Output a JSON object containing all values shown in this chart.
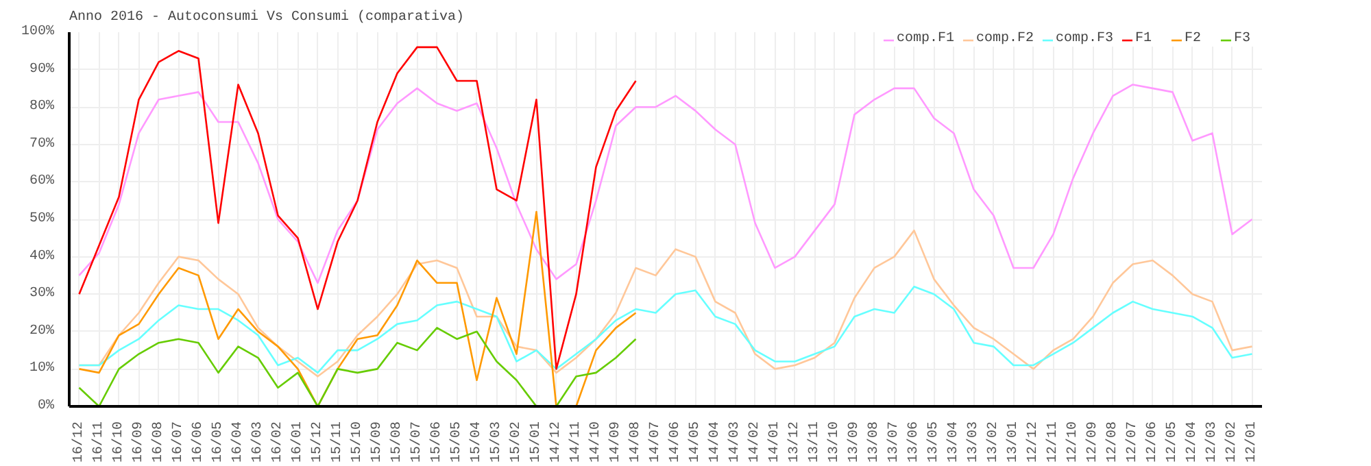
{
  "chart_data": {
    "type": "line",
    "title": "Anno 2016 - Autoconsumi Vs Consumi (comparativa)",
    "categories": [
      "16/12",
      "16/11",
      "16/10",
      "16/09",
      "16/08",
      "16/07",
      "16/06",
      "16/05",
      "16/04",
      "16/03",
      "16/02",
      "16/01",
      "15/12",
      "15/11",
      "15/10",
      "15/09",
      "15/08",
      "15/07",
      "15/06",
      "15/05",
      "15/04",
      "15/03",
      "15/02",
      "15/01",
      "14/12",
      "14/11",
      "14/10",
      "14/09",
      "14/08",
      "14/07",
      "14/06",
      "14/05",
      "14/04",
      "14/03",
      "14/02",
      "14/01",
      "13/12",
      "13/11",
      "13/10",
      "13/09",
      "13/08",
      "13/07",
      "13/06",
      "13/05",
      "13/04",
      "13/03",
      "13/02",
      "13/01",
      "12/12",
      "12/11",
      "12/10",
      "12/09",
      "12/08",
      "12/07",
      "12/06",
      "12/05",
      "12/04",
      "12/03",
      "12/02",
      "12/01"
    ],
    "series": [
      {
        "name": "comp.F1",
        "color": "#ff99ff",
        "values": [
          35,
          41,
          54,
          73,
          82,
          83,
          84,
          76,
          76,
          65,
          50,
          44,
          33,
          47,
          55,
          74,
          81,
          85,
          81,
          79,
          81,
          69,
          54,
          42,
          34,
          38,
          55,
          75,
          80,
          80,
          83,
          79,
          74,
          70,
          49,
          37,
          40,
          47,
          54,
          78,
          82,
          85,
          85,
          77,
          73,
          58,
          51,
          37,
          37,
          46,
          61,
          73,
          83,
          86,
          85,
          84,
          71,
          73,
          46,
          50
        ]
      },
      {
        "name": "comp.F2",
        "color": "#ffc799",
        "values": [
          11,
          11,
          19,
          25,
          33,
          40,
          39,
          34,
          30,
          21,
          16,
          12,
          8,
          12,
          19,
          24,
          30,
          38,
          39,
          37,
          24,
          24,
          16,
          15,
          9,
          13,
          18,
          25,
          37,
          35,
          42,
          40,
          28,
          25,
          14,
          10,
          11,
          13,
          17,
          29,
          37,
          40,
          47,
          34,
          27,
          21,
          18,
          14,
          10,
          15,
          18,
          24,
          33,
          38,
          39,
          35,
          30,
          28,
          15,
          16
        ]
      },
      {
        "name": "comp.F3",
        "color": "#66ffff",
        "values": [
          11,
          11,
          15,
          18,
          23,
          27,
          26,
          26,
          23,
          19,
          11,
          13,
          9,
          15,
          15,
          18,
          22,
          23,
          27,
          28,
          26,
          24,
          12,
          15,
          10,
          14,
          18,
          23,
          26,
          25,
          30,
          31,
          24,
          22,
          15,
          12,
          12,
          14,
          16,
          24,
          26,
          25,
          32,
          30,
          26,
          17,
          16,
          11,
          11,
          14,
          17,
          21,
          25,
          28,
          26,
          25,
          24,
          21,
          13,
          14
        ]
      },
      {
        "name": "F1",
        "color": "#ff0000",
        "values": [
          30,
          43,
          56,
          82,
          92,
          95,
          93,
          49,
          86,
          73,
          51,
          45,
          26,
          44,
          55,
          76,
          89,
          96,
          96,
          87,
          87,
          58,
          55,
          82,
          10,
          30,
          64,
          79,
          87,
          null,
          null,
          null,
          null,
          null,
          null,
          null,
          null,
          null,
          null,
          null,
          null,
          null,
          null,
          null,
          null,
          null,
          null,
          null,
          null,
          null,
          null,
          null,
          null,
          null,
          null,
          null,
          null,
          null,
          null,
          null
        ]
      },
      {
        "name": "F2",
        "color": "#ff9900",
        "values": [
          10,
          9,
          19,
          22,
          30,
          37,
          35,
          18,
          26,
          20,
          16,
          10,
          0,
          10,
          18,
          19,
          27,
          39,
          33,
          33,
          7,
          29,
          14,
          52,
          0,
          0,
          15,
          21,
          25,
          null,
          null,
          null,
          null,
          null,
          null,
          null,
          null,
          null,
          null,
          null,
          null,
          null,
          null,
          null,
          null,
          null,
          null,
          null,
          null,
          null,
          null,
          null,
          null,
          null,
          null,
          null,
          null,
          null,
          null,
          null
        ]
      },
      {
        "name": "F3",
        "color": "#66cc00",
        "values": [
          5,
          0,
          10,
          14,
          17,
          18,
          17,
          9,
          16,
          13,
          5,
          9,
          0,
          10,
          9,
          10,
          17,
          15,
          21,
          18,
          20,
          12,
          7,
          0,
          0,
          8,
          9,
          13,
          18,
          null,
          null,
          null,
          null,
          null,
          null,
          null,
          null,
          null,
          null,
          null,
          null,
          null,
          null,
          null,
          null,
          null,
          null,
          null,
          null,
          null,
          null,
          null,
          null,
          null,
          null,
          null,
          null,
          null,
          null,
          null
        ]
      }
    ],
    "ylim": [
      0,
      100
    ],
    "yticks": [
      {
        "value": 0,
        "label": "0%"
      },
      {
        "value": 10,
        "label": "10%"
      },
      {
        "value": 20,
        "label": "20%"
      },
      {
        "value": 30,
        "label": "30%"
      },
      {
        "value": 40,
        "label": "40%"
      },
      {
        "value": 50,
        "label": "50%"
      },
      {
        "value": 60,
        "label": "60%"
      },
      {
        "value": 70,
        "label": "70%"
      },
      {
        "value": 80,
        "label": "80%"
      },
      {
        "value": 90,
        "label": "90%"
      },
      {
        "value": 100,
        "label": "100%"
      }
    ],
    "grid": true,
    "legend": "top right",
    "marker": "none",
    "line_style": "solid"
  }
}
